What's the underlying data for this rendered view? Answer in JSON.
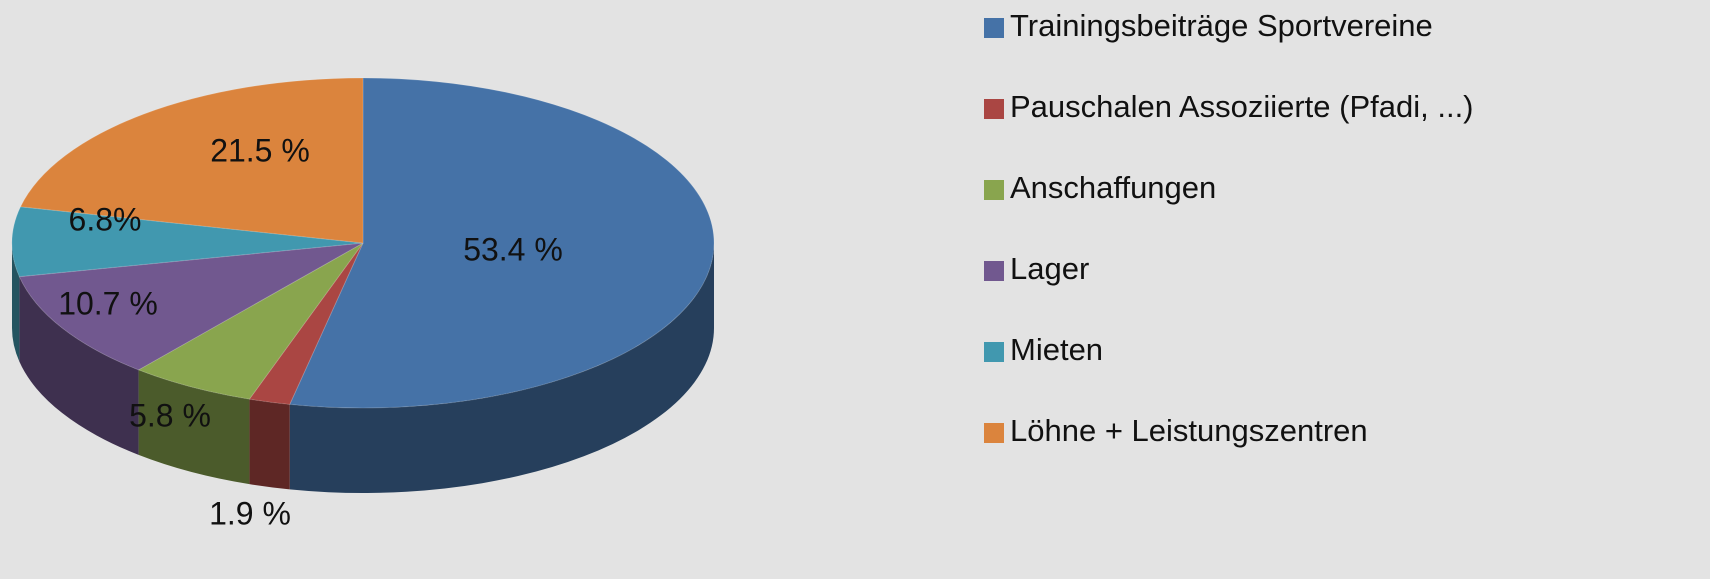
{
  "chart_data": {
    "type": "pie",
    "categories": [
      "Trainingsbeiträge Sportvereine",
      "Pauschalen Assoziierte (Pfadi, ...)",
      "Anschaffungen",
      "Lager",
      "Mieten",
      "Löhne + Leistungszentren"
    ],
    "values": [
      53.4,
      1.9,
      5.8,
      10.7,
      6.8,
      21.5
    ],
    "value_labels": [
      "53.4 %",
      "1.9 %",
      "5.8 %",
      "10.7 %",
      "6.8%",
      "21.5 %"
    ],
    "colors": [
      "#4572a7",
      "#aa4643",
      "#89a54e",
      "#71588f",
      "#4198af",
      "#db843d"
    ],
    "legend": "right"
  }
}
